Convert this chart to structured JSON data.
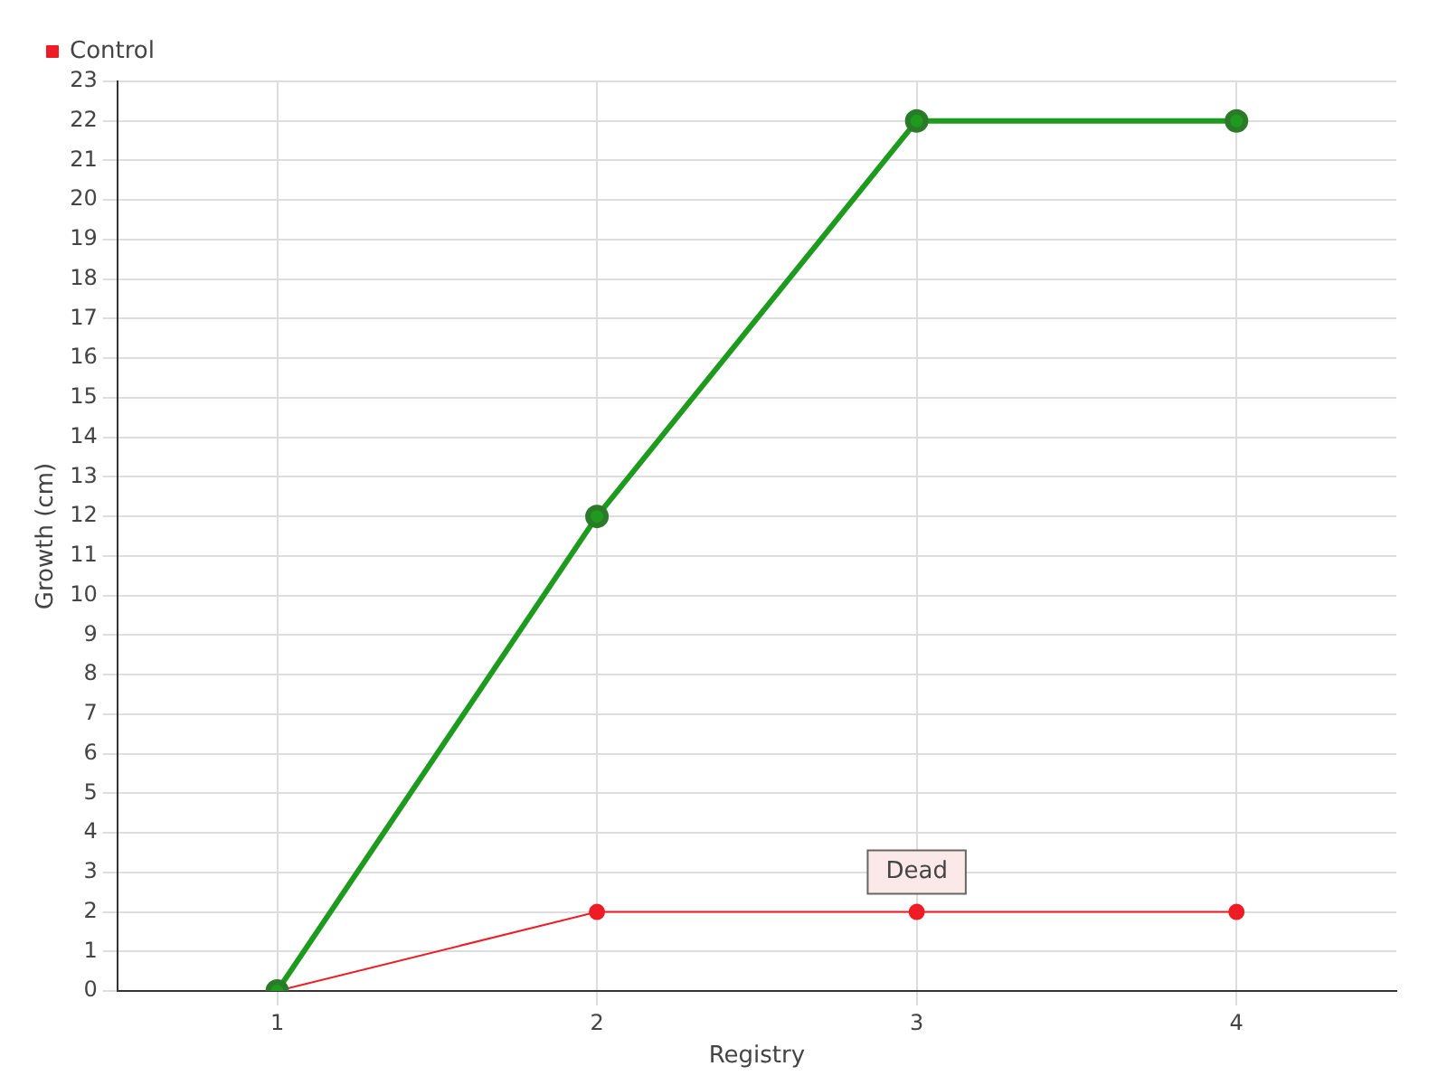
{
  "chart_data": {
    "type": "line",
    "xlabel": "Registry",
    "ylabel": "Growth (cm)",
    "x": [
      1,
      2,
      3,
      4
    ],
    "series": [
      {
        "color": "#1e9a1e",
        "values": [
          0,
          12,
          22,
          22
        ]
      },
      {
        "name": "Control",
        "color": "#ee1c24",
        "values": [
          0,
          2,
          2,
          2
        ]
      }
    ],
    "xlim": [
      0.5,
      4.5
    ],
    "xticks": [
      1,
      2,
      3,
      4
    ],
    "ylim": [
      0,
      23
    ],
    "yticks": [
      0,
      1,
      2,
      3,
      4,
      5,
      6,
      7,
      8,
      9,
      10,
      11,
      12,
      13,
      14,
      15,
      16,
      17,
      18,
      19,
      20,
      21,
      22,
      23
    ],
    "grid": true,
    "legend": "top left",
    "marker": "circle",
    "annotations": [
      {
        "text": "Dead",
        "x": 3,
        "y": 2
      }
    ]
  }
}
